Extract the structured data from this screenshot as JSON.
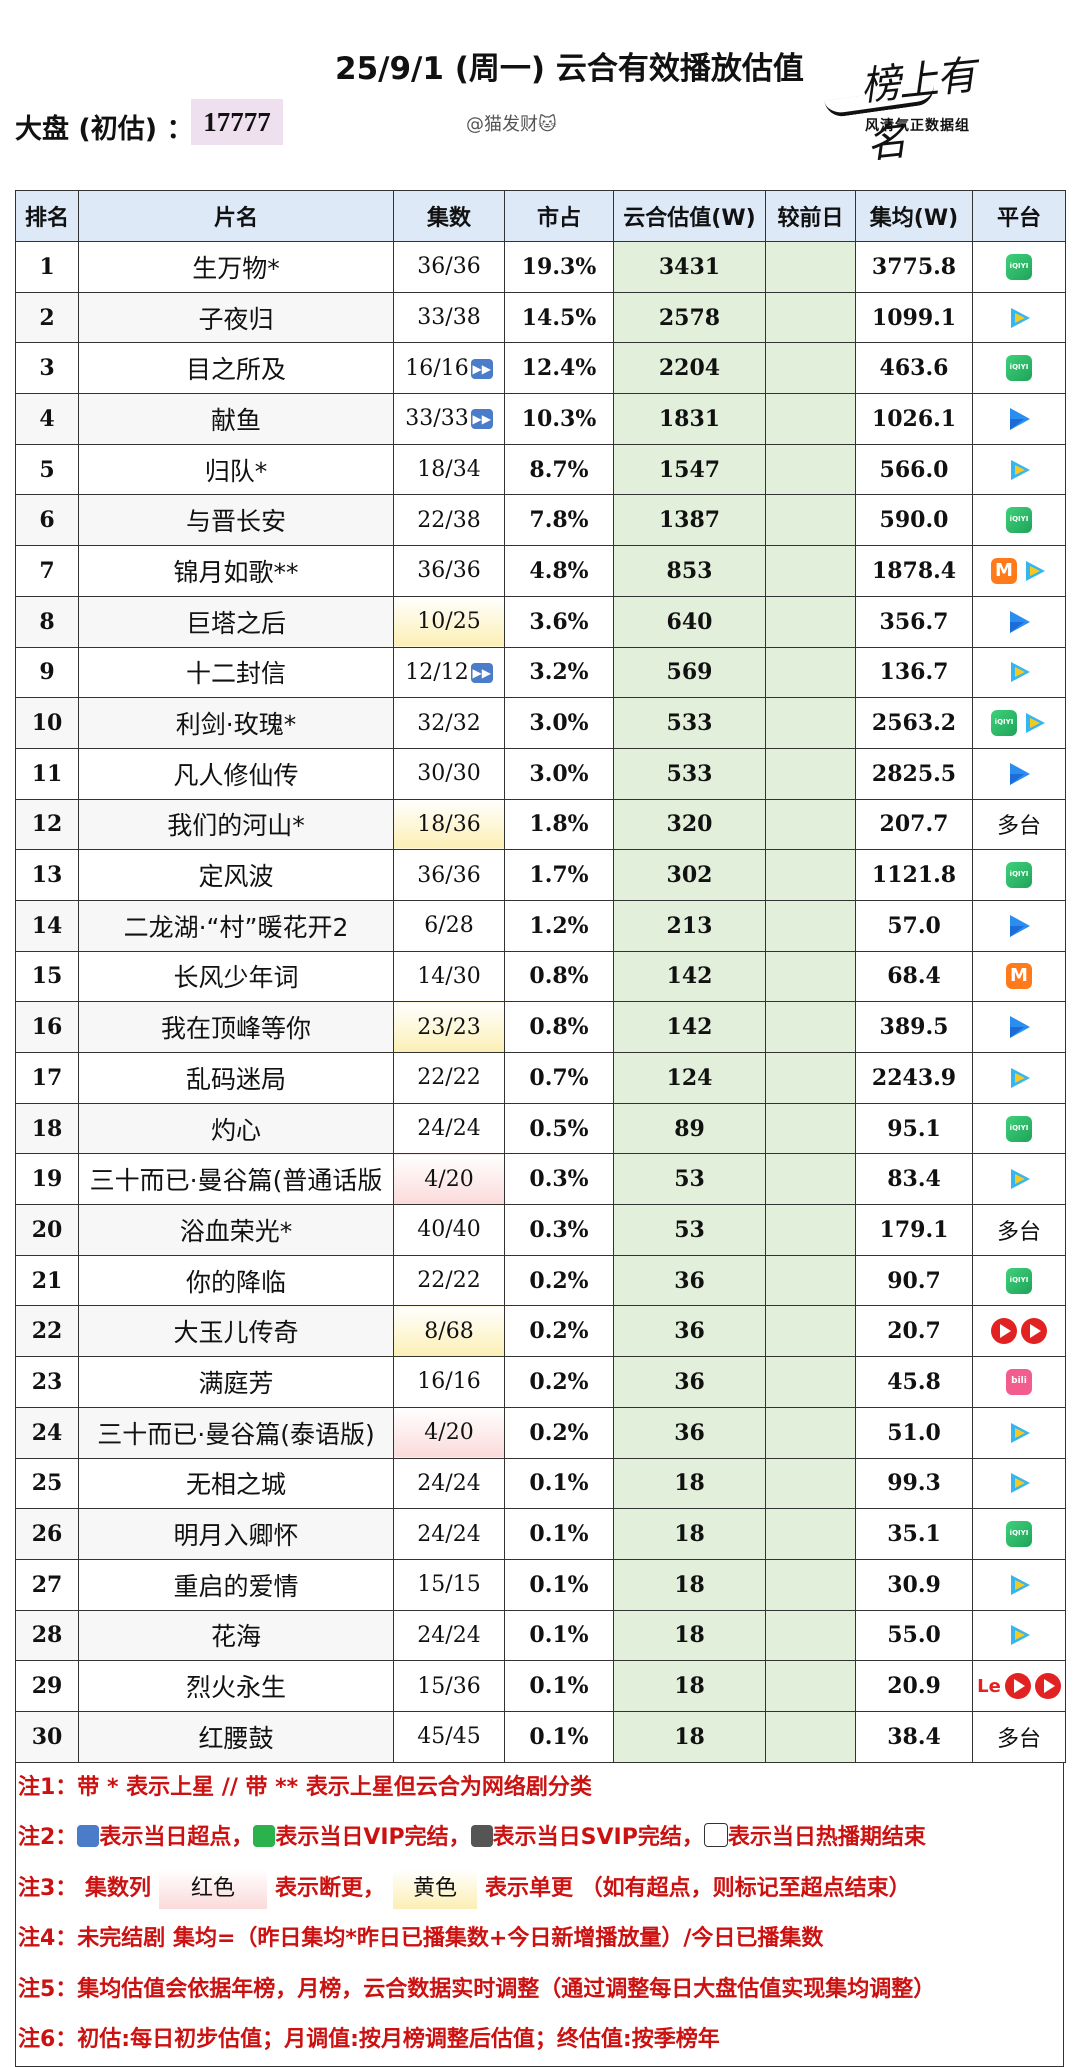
{
  "header": {
    "title": "25/9/1 (周一) 云合有效播放估值",
    "market_label": "大盘 (初估) ：",
    "market_value": "17777",
    "author": "@猫发财🐱",
    "logo_main": "榜上有名",
    "logo_sub": "风清气正数据组"
  },
  "columns": [
    "排名",
    "片名",
    "集数",
    "市占",
    "云合估值(W)",
    "较前日",
    "集均(W)",
    "平台"
  ],
  "rows": [
    {
      "rank": "1",
      "name": "生万物*",
      "eps": "36/36",
      "share": "19.3%",
      "est": "3431",
      "prev": "",
      "avg": "3775.8",
      "platforms": [
        "iqiyi"
      ]
    },
    {
      "rank": "2",
      "name": "子夜归",
      "eps": "33/38",
      "share": "14.5%",
      "est": "2578",
      "prev": "",
      "avg": "1099.1",
      "platforms": [
        "tencent"
      ]
    },
    {
      "rank": "3",
      "name": "目之所及",
      "eps": "16/16",
      "eps_ff": true,
      "share": "12.4%",
      "est": "2204",
      "prev": "",
      "avg": "463.6",
      "platforms": [
        "iqiyi"
      ]
    },
    {
      "rank": "4",
      "name": "献鱼",
      "eps": "33/33",
      "eps_ff": true,
      "share": "10.3%",
      "est": "1831",
      "prev": "",
      "avg": "1026.1",
      "platforms": [
        "youku"
      ]
    },
    {
      "rank": "5",
      "name": "归队*",
      "eps": "18/34",
      "share": "8.7%",
      "est": "1547",
      "prev": "",
      "avg": "566.0",
      "platforms": [
        "tencent"
      ]
    },
    {
      "rank": "6",
      "name": "与晋长安",
      "eps": "22/38",
      "share": "7.8%",
      "est": "1387",
      "prev": "",
      "avg": "590.0",
      "platforms": [
        "iqiyi"
      ]
    },
    {
      "rank": "7",
      "name": "锦月如歌**",
      "eps": "36/36",
      "share": "4.8%",
      "est": "853",
      "prev": "",
      "avg": "1878.4",
      "platforms": [
        "mango",
        "tencent"
      ]
    },
    {
      "rank": "8",
      "name": "巨塔之后",
      "eps": "10/25",
      "eps_color": "yellow",
      "share": "3.6%",
      "est": "640",
      "prev": "",
      "avg": "356.7",
      "platforms": [
        "youku"
      ]
    },
    {
      "rank": "9",
      "name": "十二封信",
      "eps": "12/12",
      "eps_ff": true,
      "share": "3.2%",
      "est": "569",
      "prev": "",
      "avg": "136.7",
      "platforms": [
        "tencent"
      ]
    },
    {
      "rank": "10",
      "name": "利剑·玫瑰*",
      "eps": "32/32",
      "share": "3.0%",
      "est": "533",
      "prev": "",
      "avg": "2563.2",
      "platforms": [
        "iqiyi",
        "tencent"
      ]
    },
    {
      "rank": "11",
      "name": "凡人修仙传",
      "eps": "30/30",
      "share": "3.0%",
      "est": "533",
      "prev": "",
      "avg": "2825.5",
      "platforms": [
        "youku"
      ]
    },
    {
      "rank": "12",
      "name": "我们的河山*",
      "eps": "18/36",
      "eps_color": "yellow",
      "share": "1.8%",
      "est": "320",
      "prev": "",
      "avg": "207.7",
      "platform_text": "多台"
    },
    {
      "rank": "13",
      "name": "定风波",
      "eps": "36/36",
      "share": "1.7%",
      "est": "302",
      "prev": "",
      "avg": "1121.8",
      "platforms": [
        "iqiyi"
      ]
    },
    {
      "rank": "14",
      "name": "二龙湖·“村”暖花开2",
      "eps": "6/28",
      "share": "1.2%",
      "est": "213",
      "prev": "",
      "avg": "57.0",
      "platforms": [
        "youku"
      ]
    },
    {
      "rank": "15",
      "name": "长风少年词",
      "eps": "14/30",
      "share": "0.8%",
      "est": "142",
      "prev": "",
      "avg": "68.4",
      "platforms": [
        "mango"
      ]
    },
    {
      "rank": "16",
      "name": "我在顶峰等你",
      "eps": "23/23",
      "eps_color": "yellow",
      "share": "0.8%",
      "est": "142",
      "prev": "",
      "avg": "389.5",
      "platforms": [
        "youku"
      ]
    },
    {
      "rank": "17",
      "name": "乱码迷局",
      "eps": "22/22",
      "share": "0.7%",
      "est": "124",
      "prev": "",
      "avg": "2243.9",
      "platforms": [
        "tencent"
      ]
    },
    {
      "rank": "18",
      "name": "灼心",
      "eps": "24/24",
      "share": "0.5%",
      "est": "89",
      "prev": "",
      "avg": "95.1",
      "platforms": [
        "iqiyi"
      ]
    },
    {
      "rank": "19",
      "name": "三十而已·曼谷篇(普通话版",
      "eps": "4/20",
      "eps_color": "red",
      "share": "0.3%",
      "est": "53",
      "prev": "",
      "avg": "83.4",
      "platforms": [
        "tencent"
      ]
    },
    {
      "rank": "20",
      "name": "浴血荣光*",
      "eps": "40/40",
      "share": "0.3%",
      "est": "53",
      "prev": "",
      "avg": "179.1",
      "platform_text": "多台"
    },
    {
      "rank": "21",
      "name": "你的降临",
      "eps": "22/22",
      "share": "0.2%",
      "est": "36",
      "prev": "",
      "avg": "90.7",
      "platforms": [
        "iqiyi"
      ]
    },
    {
      "rank": "22",
      "name": "大玉儿传奇",
      "eps": "8/68",
      "eps_color": "yellow",
      "share": "0.2%",
      "est": "36",
      "prev": "",
      "avg": "20.7",
      "platforms": [
        "migu",
        "migu"
      ]
    },
    {
      "rank": "23",
      "name": "满庭芳",
      "eps": "16/16",
      "share": "0.2%",
      "est": "36",
      "prev": "",
      "avg": "45.8",
      "platforms": [
        "bilibili"
      ]
    },
    {
      "rank": "24",
      "name": "三十而已·曼谷篇(泰语版)",
      "eps": "4/20",
      "eps_color": "red",
      "share": "0.2%",
      "est": "36",
      "prev": "",
      "avg": "51.0",
      "platforms": [
        "tencent"
      ]
    },
    {
      "rank": "25",
      "name": "无相之城",
      "eps": "24/24",
      "share": "0.1%",
      "est": "18",
      "prev": "",
      "avg": "99.3",
      "platforms": [
        "tencent"
      ]
    },
    {
      "rank": "26",
      "name": "明月入卿怀",
      "eps": "24/24",
      "share": "0.1%",
      "est": "18",
      "prev": "",
      "avg": "35.1",
      "platforms": [
        "iqiyi"
      ]
    },
    {
      "rank": "27",
      "name": "重启的爱情",
      "eps": "15/15",
      "share": "0.1%",
      "est": "18",
      "prev": "",
      "avg": "30.9",
      "platforms": [
        "tencent"
      ]
    },
    {
      "rank": "28",
      "name": "花海",
      "eps": "24/24",
      "share": "0.1%",
      "est": "18",
      "prev": "",
      "avg": "55.0",
      "platforms": [
        "tencent"
      ]
    },
    {
      "rank": "29",
      "name": "烈火永生",
      "eps": "15/36",
      "share": "0.1%",
      "est": "18",
      "prev": "",
      "avg": "20.9",
      "platforms": [
        "le",
        "migu",
        "migu"
      ]
    },
    {
      "rank": "30",
      "name": "红腰鼓",
      "eps": "45/45",
      "share": "0.1%",
      "est": "18",
      "prev": "",
      "avg": "38.4",
      "platform_text": "多台"
    }
  ],
  "notes": {
    "n1": "注1：带 * 表示上星 // 带 ** 表示上星但云合为网络剧分类",
    "n2_a": "注2：",
    "n2_b": "表示当日超点，",
    "n2_c": "表示当日VIP完结，",
    "n2_d": "表示当日SVIP完结，",
    "n2_e": "表示当日热播期结束",
    "n3_a": "注3：  集数列",
    "n3_red": "红色",
    "n3_b": "表示断更，",
    "n3_yellow": "黄色",
    "n3_c": "表示单更 （如有超点，则标记至超点结束）",
    "n4": "注4：未完结剧 集均=（昨日集均*昨日已播集数+今日新增播放量）/今日已播集数",
    "n5": "注5：集均估值会依据年榜，月榜，云合数据实时调整（通过调整每日大盘估值实现集均调整）",
    "n6": "注6：初估:每日初步估值；月调值:按月榜调整后估值；终估值:按季榜年"
  },
  "colors": {
    "header_bg": "#dde9f6",
    "estimate_bg": "#e2efda",
    "market_bg": "#efe0f0",
    "note_text": "#cc1111",
    "red_mark": "#fbdada",
    "yellow_mark": "#fcefb4"
  },
  "icons": {
    "fast_forward": "fast-forward-icon",
    "iqiyi": "iqiyi-icon",
    "tencent": "tencent-video-icon",
    "youku": "youku-icon",
    "mango": "mango-tv-icon",
    "bilibili": "bilibili-icon",
    "migu": "migu-icon",
    "le": "letv-icon"
  },
  "platform_labels": {
    "le": "Le"
  }
}
